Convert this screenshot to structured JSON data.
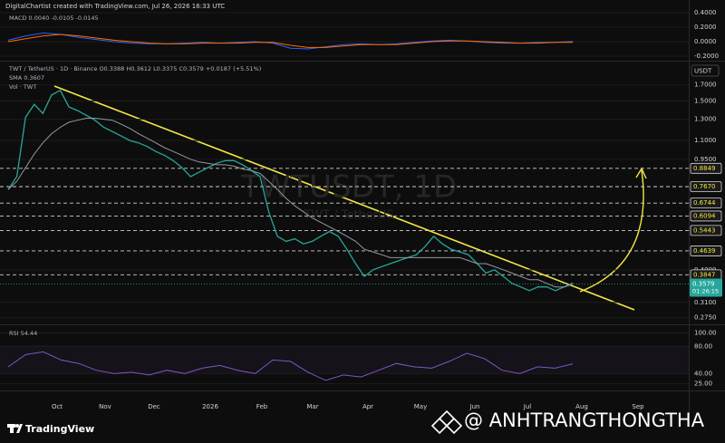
{
  "header": {
    "credit": "DigitalChartist created with TradingView.com, Jul 26, 2026 16:33 UTC"
  },
  "chart_data": [
    {
      "type": "line",
      "legend": [
        "MACD 0.0040 -0.0105 -0.0145"
      ],
      "ylim": [
        -0.2625,
        0.575
      ],
      "yticks": [
        {
          "value": 0.4,
          "label": "0.4000"
        },
        {
          "value": 0.2,
          "label": "0.2000"
        },
        {
          "value": 0,
          "label": "0.0000"
        },
        {
          "value": -0.2,
          "label": "-0.2000"
        }
      ],
      "series": [
        {
          "color": "#2962ff",
          "values": [
            0.02,
            0.08,
            0.12,
            0.1,
            0.06,
            0.03,
            0.0,
            -0.02,
            -0.03,
            -0.03,
            -0.02,
            -0.01,
            -0.02,
            -0.01,
            0.0,
            -0.02,
            -0.09,
            -0.1,
            -0.07,
            -0.04,
            -0.03,
            -0.04,
            -0.03,
            -0.01,
            0.01,
            0.02,
            0.01,
            -0.01,
            -0.02,
            -0.02,
            -0.01,
            -0.01,
            0.004
          ]
        },
        {
          "color": "#ff6d00",
          "values": [
            0.0,
            0.04,
            0.08,
            0.1,
            0.08,
            0.05,
            0.02,
            0.0,
            -0.02,
            -0.03,
            -0.03,
            -0.02,
            -0.02,
            -0.02,
            -0.01,
            -0.01,
            -0.05,
            -0.08,
            -0.08,
            -0.06,
            -0.04,
            -0.04,
            -0.04,
            -0.02,
            0.0,
            0.01,
            0.01,
            0.0,
            -0.01,
            -0.02,
            -0.02,
            -0.01,
            -0.01
          ]
        }
      ]
    },
    {
      "type": "line",
      "legend": [
        "TWT / TetherUS · 1D · Binance  O0.3388 H0.3612 L0.3375 C0.3579 +0.0187 (+5.51%)",
        "SMA 0.3607",
        "Vol · TWT"
      ],
      "watermark": [
        "TWTUSDT, 1D",
        "TWT / TetherUS"
      ],
      "unit": "USDT",
      "log_scale": true,
      "ylim": [
        0.263,
        2.04
      ],
      "yticks": [
        {
          "value": 1.7,
          "label": "1.7000"
        },
        {
          "value": 1.5,
          "label": "1.5000"
        },
        {
          "value": 1.3,
          "label": "1.3000"
        },
        {
          "value": 1.1,
          "label": "1.1000"
        },
        {
          "value": 0.95,
          "label": "0.9500"
        },
        {
          "value": 0.4,
          "label": "0.4000"
        },
        {
          "value": 0.31,
          "label": "0.3100"
        },
        {
          "value": 0.275,
          "label": "0.2750"
        }
      ],
      "levels": [
        0.8849,
        {
          "value": 0.767,
          "label": "0.7670"
        },
        0.6744,
        0.6094,
        0.5443,
        0.4639,
        0.3847
      ],
      "last_price": 0.3579,
      "countdown": "01:26:15",
      "series": [
        {
          "color": "#26a69a",
          "values": [
            0.75,
            0.83,
            1.32,
            1.46,
            1.36,
            1.57,
            1.63,
            1.43,
            1.39,
            1.34,
            1.29,
            1.22,
            1.18,
            1.14,
            1.1,
            1.08,
            1.05,
            1.01,
            0.98,
            0.94,
            0.89,
            0.83,
            0.86,
            0.89,
            0.92,
            0.94,
            0.94,
            0.91,
            0.87,
            0.83,
            0.63,
            0.52,
            0.5,
            0.51,
            0.49,
            0.5,
            0.52,
            0.54,
            0.52,
            0.47,
            0.42,
            0.38,
            0.4,
            0.41,
            0.42,
            0.43,
            0.44,
            0.45,
            0.48,
            0.52,
            0.49,
            0.47,
            0.46,
            0.45,
            0.42,
            0.39,
            0.4,
            0.38,
            0.36,
            0.35,
            0.34,
            0.35,
            0.35,
            0.34,
            0.35,
            0.3579
          ]
        },
        {
          "color": "#9598a1",
          "values": [
            0.75,
            0.8,
            0.89,
            0.99,
            1.08,
            1.16,
            1.22,
            1.27,
            1.29,
            1.31,
            1.31,
            1.3,
            1.29,
            1.25,
            1.21,
            1.16,
            1.12,
            1.08,
            1.04,
            1.01,
            0.98,
            0.95,
            0.93,
            0.92,
            0.91,
            0.91,
            0.9,
            0.88,
            0.87,
            0.85,
            0.8,
            0.75,
            0.7,
            0.66,
            0.63,
            0.6,
            0.58,
            0.56,
            0.54,
            0.52,
            0.5,
            0.47,
            0.46,
            0.45,
            0.44,
            0.44,
            0.44,
            0.44,
            0.44,
            0.44,
            0.44,
            0.44,
            0.44,
            0.43,
            0.42,
            0.42,
            0.41,
            0.4,
            0.39,
            0.38,
            0.37,
            0.37,
            0.36,
            0.35,
            0.35,
            0.3607
          ]
        }
      ]
    },
    {
      "type": "line",
      "legend": [
        "RSI 54.44"
      ],
      "ylim": [
        16.5,
        110
      ],
      "yticks": [
        {
          "value": 100,
          "label": "100.00"
        },
        {
          "value": 80,
          "label": "80.00"
        },
        {
          "value": 40,
          "label": "40.00"
        },
        {
          "value": 25,
          "label": "25.00"
        }
      ],
      "series": [
        {
          "color": "#7e57c2",
          "values": [
            50,
            68,
            72,
            60,
            55,
            45,
            40,
            42,
            38,
            45,
            40,
            48,
            52,
            45,
            40,
            60,
            58,
            42,
            30,
            38,
            35,
            45,
            55,
            50,
            48,
            58,
            70,
            62,
            45,
            40,
            50,
            48,
            54.44
          ]
        }
      ]
    }
  ],
  "time_axis": [
    "Oct",
    "Nov",
    "Dec",
    "2026",
    "Feb",
    "Mar",
    "Apr",
    "May",
    "Jun",
    "Jul",
    "Aug",
    "Sep"
  ],
  "footer": {
    "brand": "TradingView",
    "handle": "@ ANHTRANGTHONGTHA"
  }
}
